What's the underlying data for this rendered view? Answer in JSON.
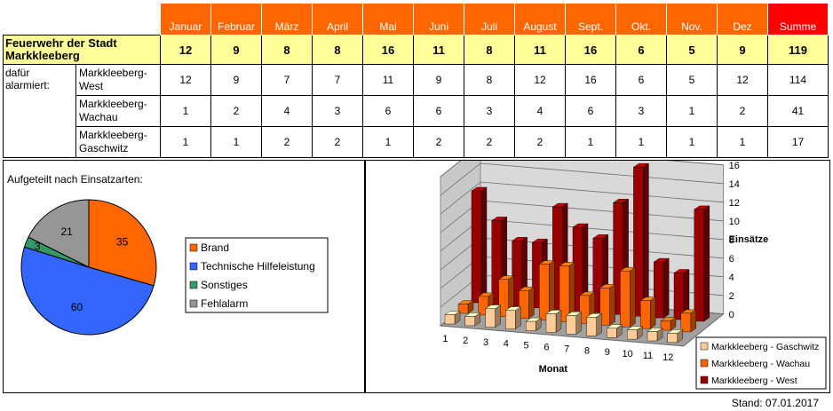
{
  "table": {
    "title": "Feuerwehr der Stadt Markkleeberg",
    "row_label": "dafür alarmiert:",
    "months": [
      "Januar",
      "Februar",
      "März",
      "April",
      "Mai",
      "Juni",
      "Juli",
      "August",
      "Sept.",
      "Okt.",
      "Nov.",
      "Dez"
    ],
    "sum_label": "Summe",
    "totals": [
      12,
      9,
      8,
      8,
      16,
      11,
      8,
      11,
      16,
      6,
      5,
      9
    ],
    "totals_sum": 119,
    "rows": [
      {
        "name": "Markkleeberg-West",
        "values": [
          12,
          9,
          7,
          7,
          11,
          9,
          8,
          12,
          16,
          6,
          5,
          12
        ],
        "sum": 114
      },
      {
        "name": "Markkleeberg-Wachau",
        "values": [
          1,
          2,
          4,
          3,
          6,
          6,
          3,
          4,
          6,
          3,
          1,
          2
        ],
        "sum": 41
      },
      {
        "name": "Markkleeberg-Gaschwitz",
        "values": [
          1,
          1,
          2,
          2,
          1,
          2,
          2,
          2,
          1,
          1,
          1,
          1
        ],
        "sum": 17
      }
    ]
  },
  "chart_data": [
    {
      "type": "pie",
      "title": "Aufgeteilt nach Einsatzarten:",
      "labels": [
        "Brand",
        "Technische Hilfeleistung",
        "Sonstiges",
        "Fehlalarm"
      ],
      "values": [
        35,
        60,
        3,
        21
      ],
      "colors": [
        "#ff6600",
        "#3366ff",
        "#339966",
        "#969696"
      ],
      "legend": "right"
    },
    {
      "type": "bar",
      "subtype": "3d-column",
      "categories": [
        "1",
        "2",
        "3",
        "4",
        "5",
        "6",
        "7",
        "8",
        "9",
        "10",
        "11",
        "12"
      ],
      "xlabel": "Monat",
      "ylabel": "Einsätze",
      "ylim": [
        0,
        16
      ],
      "yticks": [
        0,
        2,
        4,
        6,
        8,
        10,
        12,
        14,
        16
      ],
      "grid": true,
      "legend": "bottom-right",
      "series": [
        {
          "name": "Markkleeberg - Gaschwitz",
          "values": [
            1,
            1,
            2,
            2,
            1,
            2,
            2,
            2,
            1,
            1,
            1,
            1
          ],
          "color": "#ffcc99"
        },
        {
          "name": "Markkleeberg - Wachau",
          "values": [
            1,
            2,
            4,
            3,
            6,
            6,
            3,
            4,
            6,
            3,
            1,
            2
          ],
          "color": "#ff6600"
        },
        {
          "name": "Markkleeberg - West",
          "values": [
            12,
            9,
            7,
            7,
            11,
            9,
            8,
            12,
            16,
            6,
            5,
            12
          ],
          "color": "#990000"
        }
      ]
    }
  ],
  "footer": {
    "stand": "Stand: 07.01.2017"
  }
}
